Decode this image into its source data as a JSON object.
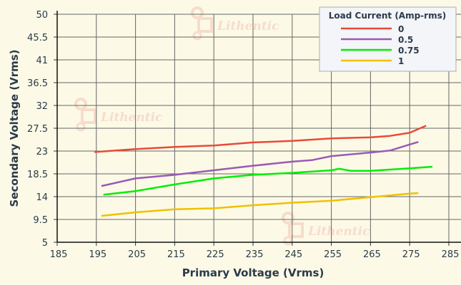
{
  "chart_data": {
    "type": "line",
    "title": "",
    "xlabel": "Primary Voltage (Vrms)",
    "ylabel": "Secondary Voltage (Vrms)",
    "xlim": [
      185,
      285
    ],
    "ylim": [
      5,
      50
    ],
    "xticks": [
      185,
      195,
      205,
      215,
      225,
      235,
      245,
      255,
      265,
      275,
      285
    ],
    "yticks": [
      5,
      9.5,
      14,
      18.5,
      23,
      27.5,
      32,
      36.5,
      41,
      45.5,
      50
    ],
    "grid": true,
    "legend": {
      "title": "Load Current (Amp-rms)",
      "placement": "top-right"
    },
    "series": [
      {
        "name": "0",
        "color": "#e84a3a",
        "x": [
          194.5,
          205,
          215,
          225,
          235,
          245,
          255,
          265,
          270,
          275,
          279.2
        ],
        "y": [
          22.8,
          23.4,
          23.8,
          24.1,
          24.7,
          25.0,
          25.5,
          25.7,
          26.0,
          26.6,
          28.0
        ]
      },
      {
        "name": "0.5",
        "color": "#9b59b6",
        "x": [
          196.3,
          205,
          215,
          225,
          235,
          245,
          250,
          255,
          265,
          270,
          275,
          277.2
        ],
        "y": [
          16.1,
          17.6,
          18.3,
          19.2,
          20.1,
          20.9,
          21.2,
          22.0,
          22.7,
          23.1,
          24.3,
          24.8
        ]
      },
      {
        "name": "0.75",
        "color": "#00ee00",
        "x": [
          196.8,
          205,
          215,
          225,
          235,
          245,
          255,
          257,
          260,
          265,
          275,
          280.8
        ],
        "y": [
          14.4,
          15.1,
          16.4,
          17.6,
          18.3,
          18.7,
          19.2,
          19.5,
          19.1,
          19.1,
          19.6,
          19.9
        ]
      },
      {
        "name": "1",
        "color": "#f0c000",
        "x": [
          196.3,
          205,
          215,
          225,
          235,
          245,
          255,
          265,
          275,
          277.2
        ],
        "y": [
          10.2,
          10.9,
          11.5,
          11.7,
          12.3,
          12.8,
          13.2,
          13.9,
          14.6,
          14.7
        ]
      }
    ]
  },
  "watermark": "Lithentic",
  "colors": {
    "background": "#fcfae6",
    "grid": "#666666",
    "legend_bg": "#f4f5f8"
  }
}
